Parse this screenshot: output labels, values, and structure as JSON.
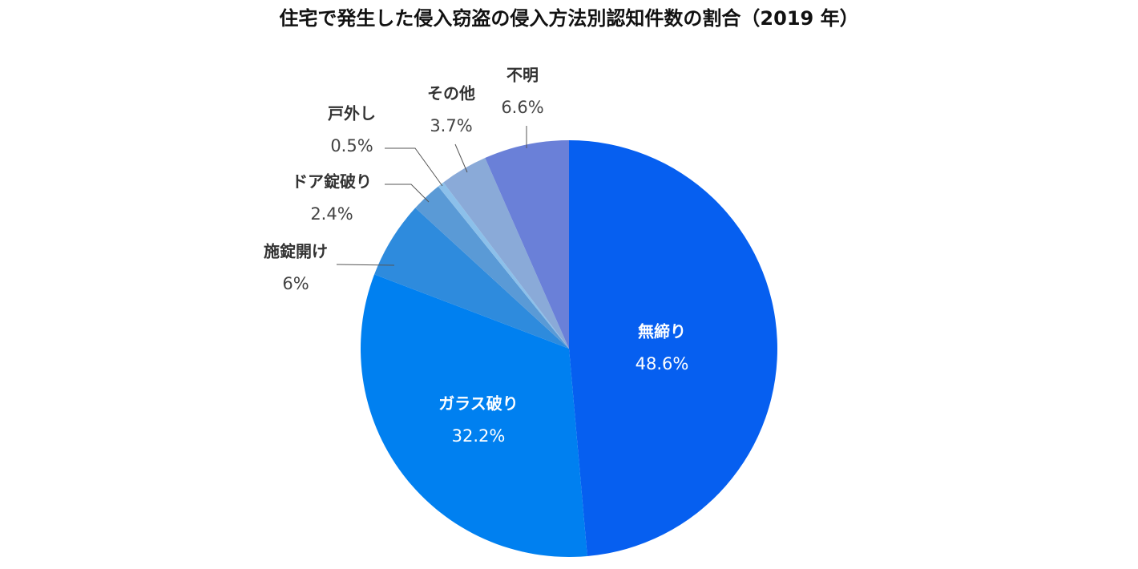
{
  "chart_data": {
    "type": "pie",
    "title": "住宅で発生した侵入窃盗の侵入方法別認知件数の割合（2019 年）",
    "categories": [
      "無締り",
      "ガラス破り",
      "施錠開け",
      "ドア錠破り",
      "戸外し",
      "その他",
      "不明"
    ],
    "values": [
      48.6,
      32.2,
      6,
      2.4,
      0.5,
      3.7,
      6.6
    ],
    "value_labels": [
      "48.6%",
      "32.2%",
      "6%",
      "2.4%",
      "0.5%",
      "3.7%",
      "6.6%"
    ],
    "colors": [
      "#065ff0",
      "#0080f0",
      "#2e8bdd",
      "#5a9ad6",
      "#8cc0ea",
      "#8aaad8",
      "#6a80d8"
    ]
  }
}
